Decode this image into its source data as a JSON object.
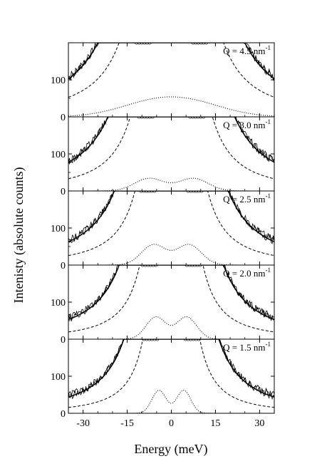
{
  "chart_data": {
    "type": "line",
    "xlabel": "Energy  (meV)",
    "ylabel": "Intenisty  (absolute counts)",
    "xlim": [
      -35,
      35
    ],
    "ylim": [
      0,
      200
    ],
    "x_ticks": [
      -30,
      -15,
      0,
      15,
      30
    ],
    "y_ticks": [
      0,
      100
    ],
    "panels": [
      {
        "label": "Q = 4.5 nm",
        "label_exponent": "-1",
        "Q": 4.5,
        "fit_peak": 7,
        "fit_amplitude": 32,
        "fit_width": 12,
        "dashed_width": 3.3,
        "solid_width": 4.6
      },
      {
        "label": "Q = 3.0 nm",
        "label_exponent": "-1",
        "Q": 3.0,
        "fit_peak": 7.5,
        "fit_amplitude": 34,
        "fit_width": 5,
        "dashed_width": 2.6,
        "solid_width": 4.0
      },
      {
        "label": "Q = 2.5 nm",
        "label_exponent": "-1",
        "Q": 2.5,
        "fit_peak": 6,
        "fit_amplitude": 55,
        "fit_width": 4.2,
        "dashed_width": 2.3,
        "solid_width": 3.6
      },
      {
        "label": "Q = 2.0 nm",
        "label_exponent": "-1",
        "Q": 2.0,
        "fit_peak": 5.2,
        "fit_amplitude": 60,
        "fit_width": 3.4,
        "dashed_width": 2.0,
        "solid_width": 3.3
      },
      {
        "label": "Q = 1.5 nm",
        "label_exponent": "-1",
        "Q": 1.5,
        "fit_peak": 4.2,
        "fit_amplitude": 62,
        "fit_width": 2.4,
        "dashed_width": 1.8,
        "solid_width": 3.0
      }
    ]
  }
}
